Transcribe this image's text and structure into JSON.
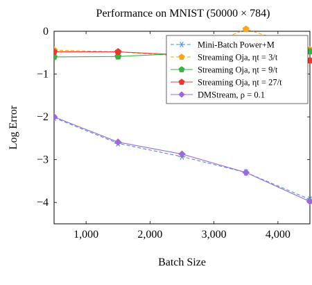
{
  "chart_data": {
    "type": "line",
    "title": "Performance on MNIST (50000 × 784)",
    "xlabel": "Batch Size",
    "ylabel": "Log Error",
    "xlim": [
      500,
      4500
    ],
    "ylim": [
      -4.5,
      0
    ],
    "xticks": [
      1000,
      2000,
      3000,
      4000
    ],
    "xtick_labels": [
      "1,000",
      "2,000",
      "3,000",
      "4,000"
    ],
    "yticks": [
      0,
      -1,
      -2,
      -3,
      -4
    ],
    "ytick_labels": [
      "0",
      "−1",
      "−2",
      "−3",
      "−4"
    ],
    "legend_position": "top-right",
    "grid": false,
    "series": [
      {
        "name": "Mini-Batch Power+M",
        "color": "#4a90d9",
        "marker": "asterisk",
        "dash": true,
        "x": [
          500,
          1500,
          2500,
          3500,
          4500
        ],
        "y": [
          -2.02,
          -2.62,
          -2.93,
          -3.3,
          -3.93
        ]
      },
      {
        "name": "Streaming Oja, ηt = 3/t",
        "color": "#f5a623",
        "marker": "pentagon",
        "dash": true,
        "x": [
          500,
          1500,
          2500,
          3500,
          4500
        ],
        "y": [
          -0.44,
          -0.48,
          -0.58,
          0.05,
          -0.43
        ]
      },
      {
        "name": "Streaming Oja, ηt = 9/t",
        "color": "#3cb043",
        "marker": "pentagon",
        "dash": false,
        "x": [
          500,
          1500,
          2500,
          3500,
          4500
        ],
        "y": [
          -0.6,
          -0.59,
          -0.52,
          -0.5,
          -0.47
        ]
      },
      {
        "name": "Streaming Oja, ηt = 27/t",
        "color": "#e03c31",
        "marker": "pentagon",
        "dash": false,
        "x": [
          500,
          1500,
          2500,
          3500,
          4500
        ],
        "y": [
          -0.48,
          -0.48,
          -0.55,
          -0.52,
          -0.68
        ]
      },
      {
        "name": "DMStream, ρ = 0.1",
        "color": "#9b6ad6",
        "marker": "diamond",
        "dash": false,
        "x": [
          500,
          1500,
          2500,
          3500,
          4500
        ],
        "y": [
          -2.0,
          -2.59,
          -2.87,
          -3.3,
          -3.98
        ]
      }
    ]
  }
}
